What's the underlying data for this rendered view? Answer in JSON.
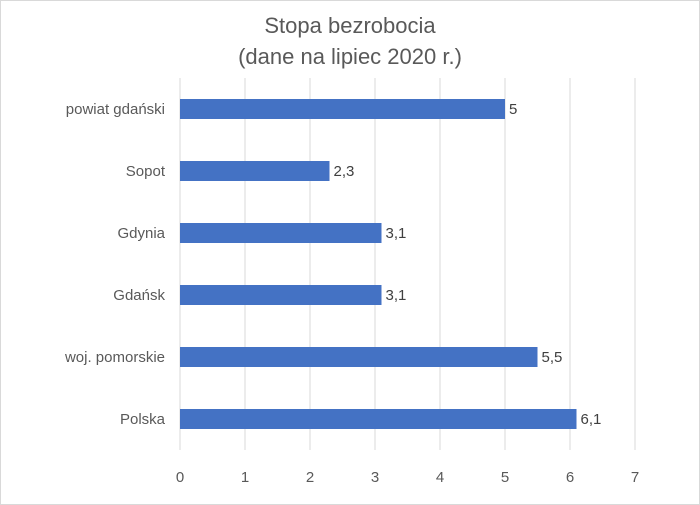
{
  "chart_data": {
    "type": "bar",
    "orientation": "horizontal",
    "title_line1": "Stopa bezrobocia",
    "title_line2": "(dane na lipiec 2020 r.)",
    "categories": [
      "powiat gdański",
      "Sopot",
      "Gdynia",
      "Gdańsk",
      "woj. pomorskie",
      "Polska"
    ],
    "values": [
      5,
      2.3,
      3.1,
      3.1,
      5.5,
      6.1
    ],
    "value_labels": [
      "5",
      "2,3",
      "3,1",
      "3,1",
      "5,5",
      "6,1"
    ],
    "x_ticks": [
      0,
      1,
      2,
      3,
      4,
      5,
      6,
      7
    ],
    "xlim": [
      0,
      7
    ],
    "grid": "vertical major",
    "legend": "none",
    "bar_color": "#4472c4",
    "grid_color": "#d9d9d9",
    "text_color": "#595959",
    "label_color": "#404040"
  }
}
